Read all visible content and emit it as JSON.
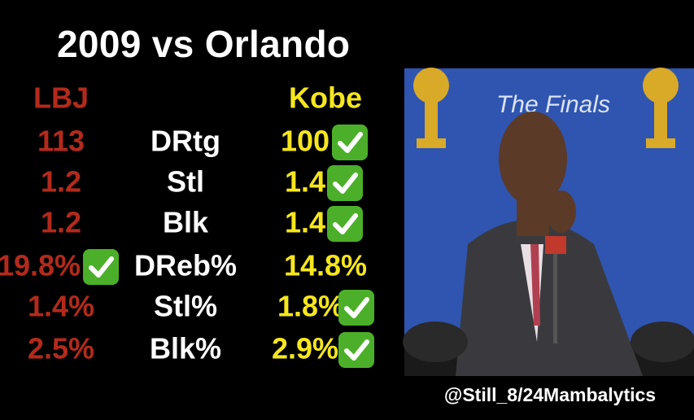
{
  "title": "2009 vs Orlando",
  "headers": {
    "lbj": "LBJ",
    "kobe": "Kobe"
  },
  "rows": [
    [
      "113",
      "DRtg",
      "100"
    ],
    [
      "1.2",
      "Stl",
      "1.4"
    ],
    [
      "1.2",
      "Blk",
      "1.4"
    ],
    [
      "19.8%",
      "DReb%",
      "14.8%"
    ],
    [
      "1.4%",
      "Stl%",
      "1.8%"
    ],
    [
      "2.5%",
      "Blk%",
      "2.9%"
    ]
  ],
  "credit": "@Still_8/24Mambalytics"
}
